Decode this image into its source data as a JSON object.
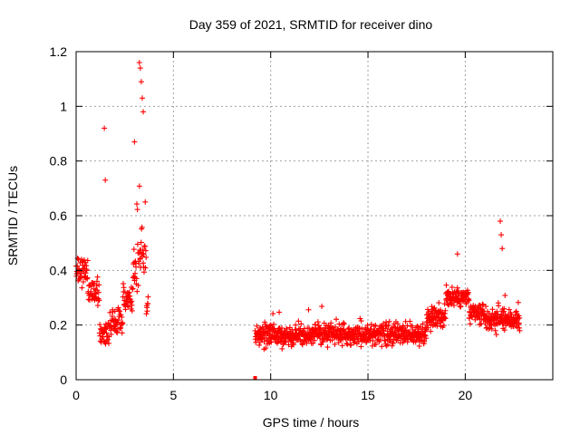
{
  "chart_data": {
    "type": "scatter",
    "title": "Day 359 of 2021, SRMTID for receiver dino",
    "xlabel": "GPS time / hours",
    "ylabel": "SRMTID / TECUs",
    "xlim": [
      0,
      24.5
    ],
    "ylim": [
      0,
      1.2
    ],
    "grid": true,
    "marker": "+",
    "color": "#ff0000",
    "x_ticks": [
      0,
      5,
      10,
      15,
      20
    ],
    "x_tick_labels": [
      "0",
      "5",
      "10",
      "15",
      "20"
    ],
    "y_ticks": [
      0,
      0.2,
      0.4,
      0.6,
      0.8,
      1.0,
      1.2
    ],
    "y_tick_labels": [
      "0",
      "0.2",
      "0.4",
      "0.6",
      "0.8",
      "1",
      "1.2"
    ],
    "series": [
      {
        "name": "SRMTID",
        "segments": [
          {
            "x_start": 0.0,
            "x_end": 3.7,
            "samples": 250,
            "approx_y_range": [
              0.07,
              1.17
            ]
          },
          {
            "x_start": 9.2,
            "x_end": 22.8,
            "samples": 1100,
            "approx_y_range": [
              0.05,
              0.58
            ]
          }
        ],
        "notable_points": [
          {
            "x": 1.45,
            "y": 0.92
          },
          {
            "x": 1.5,
            "y": 0.73
          },
          {
            "x": 3.25,
            "y": 1.16
          },
          {
            "x": 3.3,
            "y": 1.14
          },
          {
            "x": 3.35,
            "y": 1.09
          },
          {
            "x": 3.4,
            "y": 1.03
          },
          {
            "x": 3.45,
            "y": 0.98
          },
          {
            "x": 3.0,
            "y": 0.87
          },
          {
            "x": 9.2,
            "y": 0.0
          },
          {
            "x": 21.8,
            "y": 0.58
          },
          {
            "x": 21.85,
            "y": 0.53
          },
          {
            "x": 21.9,
            "y": 0.48
          },
          {
            "x": 19.6,
            "y": 0.46
          }
        ]
      }
    ]
  }
}
